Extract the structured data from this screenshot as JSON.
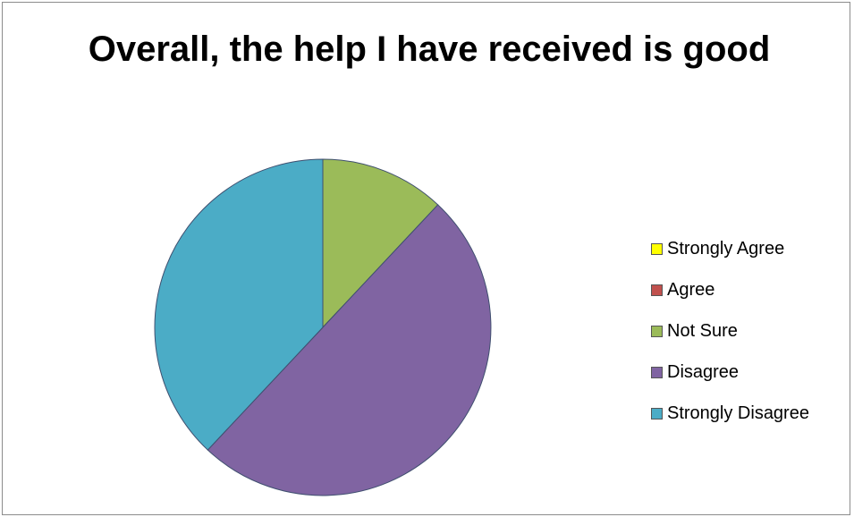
{
  "chart_data": {
    "type": "pie",
    "title": "Overall, the help I have received is good",
    "categories": [
      "Strongly Agree",
      "Agree",
      "Not Sure",
      "Disagree",
      "Strongly Disagree"
    ],
    "values": [
      0,
      0,
      12,
      50,
      38
    ],
    "colors": [
      "#ffff00",
      "#c0504d",
      "#9bbb59",
      "#8064a2",
      "#4bacc6"
    ],
    "legend": "right",
    "start": "top, clockwise"
  }
}
